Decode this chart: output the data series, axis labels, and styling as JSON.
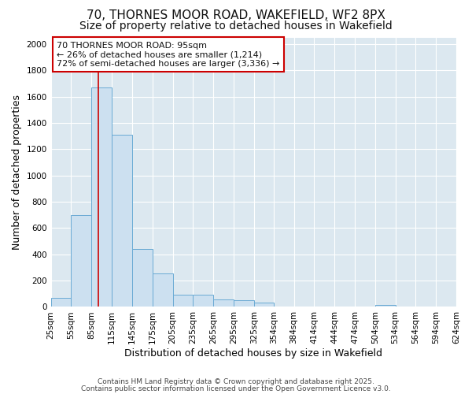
{
  "title": "70, THORNES MOOR ROAD, WAKEFIELD, WF2 8PX",
  "subtitle": "Size of property relative to detached houses in Wakefield",
  "xlabel": "Distribution of detached houses by size in Wakefield",
  "ylabel": "Number of detached properties",
  "bin_edges": [
    25,
    55,
    85,
    115,
    145,
    175,
    205,
    235,
    265,
    295,
    325,
    354,
    384,
    414,
    444,
    474,
    504,
    534,
    564,
    594,
    624
  ],
  "bar_heights": [
    70,
    700,
    1670,
    1310,
    440,
    255,
    95,
    90,
    55,
    50,
    30,
    0,
    0,
    0,
    0,
    0,
    15,
    0,
    0,
    0
  ],
  "bar_color": "#cce0f0",
  "bar_edge_color": "#6aaad4",
  "bar_edge_width": 0.7,
  "ylim": [
    0,
    2050
  ],
  "yticks": [
    0,
    200,
    400,
    600,
    800,
    1000,
    1200,
    1400,
    1600,
    1800,
    2000
  ],
  "property_size": 95,
  "annotation_line1": "70 THORNES MOOR ROAD: 95sqm",
  "annotation_line2": "← 26% of detached houses are smaller (1,214)",
  "annotation_line3": "72% of semi-detached houses are larger (3,336) →",
  "red_line_color": "#cc0000",
  "annotation_box_edge": "#cc0000",
  "fig_bg_color": "#ffffff",
  "plot_bg_color": "#dce8f0",
  "grid_color": "#ffffff",
  "footer_line1": "Contains HM Land Registry data © Crown copyright and database right 2025.",
  "footer_line2": "Contains public sector information licensed under the Open Government Licence v3.0.",
  "title_fontsize": 11,
  "subtitle_fontsize": 10,
  "axis_label_fontsize": 9,
  "tick_label_fontsize": 7.5,
  "annotation_fontsize": 8,
  "footer_fontsize": 6.5
}
